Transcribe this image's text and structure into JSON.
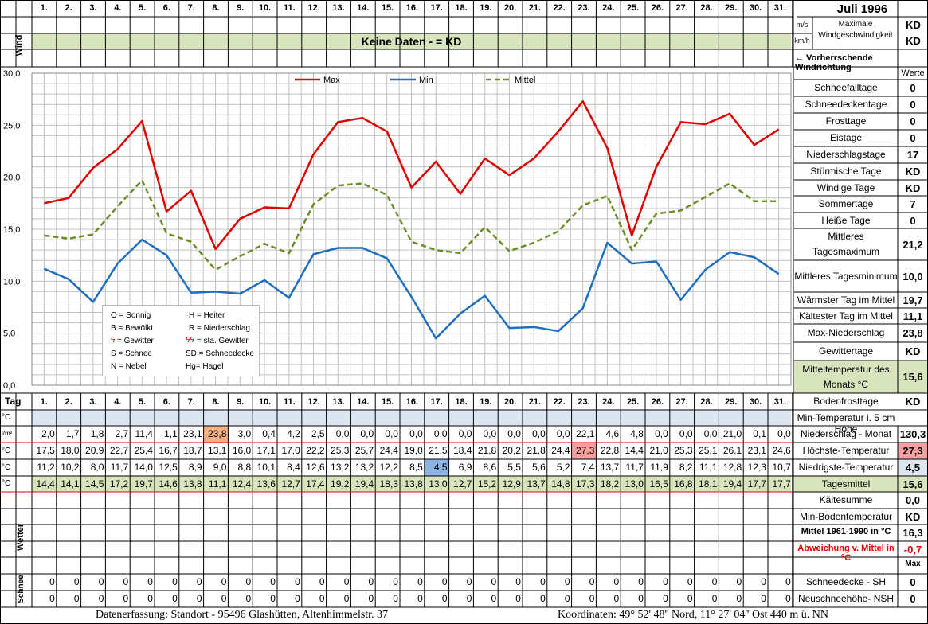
{
  "header": {
    "title": "Juli 1996",
    "days": [
      "1.",
      "2.",
      "3.",
      "4.",
      "5.",
      "6.",
      "7.",
      "8.",
      "9.",
      "10.",
      "11.",
      "12.",
      "13.",
      "14.",
      "15.",
      "16.",
      "17.",
      "18.",
      "19.",
      "20.",
      "21.",
      "22.",
      "23.",
      "24.",
      "25.",
      "26.",
      "27.",
      "28.",
      "29.",
      "30.",
      "31."
    ],
    "wind_label": "Wind",
    "no_data_banner": "Keine Daten -  = KD",
    "unit_ms": "m/s",
    "unit_kmh": "km/h",
    "max_wind_label": "Maximale Windgeschwindigkeit",
    "max_wind_val_1": "KD",
    "max_wind_val_2": "KD",
    "prevailing_wind": "← Vorherrschende Windrichtung"
  },
  "legend_box": {
    "items": [
      "O = Sonnig",
      "H = Heiter",
      "B = Bewölkt",
      "R = Niederschlag",
      "= Gewitter",
      "= sta. Gewitter",
      "S = Schnee",
      "SD = Schneedecke",
      "N = Nebel",
      "Hg= Hagel"
    ]
  },
  "stats": {
    "header": "Werte",
    "rows": [
      {
        "label": "Schneefalltage",
        "value": "0"
      },
      {
        "label": "Schneedeckentage",
        "value": "0"
      },
      {
        "label": "Frosttage",
        "value": "0"
      },
      {
        "label": "Eistage",
        "value": "0"
      },
      {
        "label": "Niederschlagstage",
        "value": "17"
      },
      {
        "label": "Stürmische Tage",
        "value": "KD"
      },
      {
        "label": "Windige Tage",
        "value": "KD"
      },
      {
        "label": "Sommertage",
        "value": "7"
      },
      {
        "label": "Heiße Tage",
        "value": "0"
      },
      {
        "label": "Mittleres Tagesmaximum",
        "value": "21,2"
      },
      {
        "label": "Mittleres Tagesminimum",
        "value": "10,0"
      },
      {
        "label": "Wärmster Tag im Mittel",
        "value": "19,7"
      },
      {
        "label": "Kältester Tag im Mittel",
        "value": "11,1"
      },
      {
        "label": "Max-Niederschlag",
        "value": "23,8"
      },
      {
        "label": "Gewittertage",
        "value": "KD"
      },
      {
        "label": "Mitteltemperatur des Monats °C",
        "value": "15,6"
      },
      {
        "label": "Bodenfrosttage",
        "value": "KD"
      }
    ]
  },
  "table": {
    "tag_label": "Tag",
    "unit_c": "°C",
    "unit_lm2": "l/m²",
    "rows": {
      "niederschlag": [
        "2,0",
        "1,7",
        "1,8",
        "2,7",
        "11,4",
        "1,1",
        "23,1",
        "23,8",
        "3,0",
        "0,4",
        "4,2",
        "2,5",
        "0,0",
        "0,0",
        "0,0",
        "0,0",
        "0,0",
        "0,0",
        "0,0",
        "0,0",
        "0,0",
        "0,0",
        "22,1",
        "4,6",
        "4,8",
        "0,0",
        "0,0",
        "0,0",
        "21,0",
        "0,1",
        "0,0"
      ],
      "max": [
        "17,5",
        "18,0",
        "20,9",
        "22,7",
        "25,4",
        "16,7",
        "18,7",
        "13,1",
        "16,0",
        "17,1",
        "17,0",
        "22,2",
        "25,3",
        "25,7",
        "24,4",
        "19,0",
        "21,5",
        "18,4",
        "21,8",
        "20,2",
        "21,8",
        "24,4",
        "27,3",
        "22,8",
        "14,4",
        "21,0",
        "25,3",
        "25,1",
        "26,1",
        "23,1",
        "24,6"
      ],
      "min": [
        "11,2",
        "10,2",
        "8,0",
        "11,7",
        "14,0",
        "12,5",
        "8,9",
        "9,0",
        "8,8",
        "10,1",
        "8,4",
        "12,6",
        "13,2",
        "13,2",
        "12,2",
        "8,5",
        "4,5",
        "6,9",
        "8,6",
        "5,5",
        "5,6",
        "5,2",
        "7,4",
        "13,7",
        "11,7",
        "11,9",
        "8,2",
        "11,1",
        "12,8",
        "12,3",
        "10,7"
      ],
      "mittel": [
        "14,4",
        "14,1",
        "14,5",
        "17,2",
        "19,7",
        "14,6",
        "13,8",
        "11,1",
        "12,4",
        "13,6",
        "12,7",
        "17,4",
        "19,2",
        "19,4",
        "18,3",
        "13,8",
        "13,0",
        "12,7",
        "15,2",
        "12,9",
        "13,7",
        "14,8",
        "17,3",
        "18,2",
        "13,0",
        "16,5",
        "16,8",
        "18,1",
        "19,4",
        "17,7",
        "17,7"
      ],
      "schnee_sh": [
        "0",
        "0",
        "0",
        "0",
        "0",
        "0",
        "0",
        "0",
        "0",
        "0",
        "0",
        "0",
        "0",
        "0",
        "0",
        "0",
        "0",
        "0",
        "0",
        "0",
        "0",
        "0",
        "0",
        "0",
        "0",
        "0",
        "0",
        "0",
        "0",
        "0",
        "0"
      ],
      "schnee_nsh": [
        "0",
        "0",
        "0",
        "0",
        "0",
        "0",
        "0",
        "0",
        "0",
        "0",
        "0",
        "0",
        "0",
        "0",
        "0",
        "0",
        "0",
        "0",
        "0",
        "0",
        "0",
        "0",
        "0",
        "0",
        "0",
        "0",
        "0",
        "0",
        "0",
        "0",
        "0"
      ]
    },
    "right": [
      {
        "label": "Min-Temperatur i. 5 cm Höhe",
        "value": ""
      },
      {
        "label": "Niederschlag - Monat",
        "value": "130,3"
      },
      {
        "label": "Höchste-Temperatur",
        "value": "27,3"
      },
      {
        "label": "Niedrigste-Temperatur",
        "value": "4,5"
      },
      {
        "label": "Tagesmittel",
        "value": "15,6"
      },
      {
        "label": "Kältesumme",
        "value": "0,0"
      },
      {
        "label": "Min-Bodentemperatur",
        "value": "KD"
      },
      {
        "label": "Mittel 1961-1990 in °C",
        "value": "16,3"
      },
      {
        "label": "Abweichung v. Mittel in °C",
        "value": "-0,7"
      },
      {
        "label": "",
        "value": "Max"
      },
      {
        "label": "Schneedecke -   SH",
        "value": "0"
      },
      {
        "label": "Neuschneehöhe- NSH",
        "value": "0"
      }
    ],
    "wetter_label": "Wetter",
    "schnee_label": "Schnee"
  },
  "footer": {
    "left": "Datenerfassung:  Standort -  95496  Glashütten, Altenhimmelstr. 37",
    "right": "Koordinaten:  49° 52' 48'' Nord,  11° 27' 04'' Ost   440 m ü. NN"
  },
  "colors": {
    "max": "#e00000",
    "min": "#1f6fc0",
    "mittel": "#6b8e23",
    "banner": "#d8e4bc",
    "blue_row": "#dce6f1",
    "highlight_orange": "#f4b183",
    "highlight_red": "#f8a0a0",
    "highlight_blue": "#8db3e2"
  },
  "chart_data": {
    "type": "line",
    "x": [
      "1.",
      "2.",
      "3.",
      "4.",
      "5.",
      "6.",
      "7.",
      "8.",
      "9.",
      "10.",
      "11.",
      "12.",
      "13.",
      "14.",
      "15.",
      "16.",
      "17.",
      "18.",
      "19.",
      "20.",
      "21.",
      "22.",
      "23.",
      "24.",
      "25.",
      "26.",
      "27.",
      "28.",
      "29.",
      "30.",
      "31."
    ],
    "series": [
      {
        "name": "Max",
        "values": [
          17.5,
          18.0,
          20.9,
          22.7,
          25.4,
          16.7,
          18.7,
          13.1,
          16.0,
          17.1,
          17.0,
          22.2,
          25.3,
          25.7,
          24.4,
          19.0,
          21.5,
          18.4,
          21.8,
          20.2,
          21.8,
          24.4,
          27.3,
          22.8,
          14.4,
          21.0,
          25.3,
          25.1,
          26.1,
          23.1,
          24.6
        ]
      },
      {
        "name": "Min",
        "values": [
          11.2,
          10.2,
          8.0,
          11.7,
          14.0,
          12.5,
          8.9,
          9.0,
          8.8,
          10.1,
          8.4,
          12.6,
          13.2,
          13.2,
          12.2,
          8.5,
          4.5,
          6.9,
          8.6,
          5.5,
          5.6,
          5.2,
          7.4,
          13.7,
          11.7,
          11.9,
          8.2,
          11.1,
          12.8,
          12.3,
          10.7
        ]
      },
      {
        "name": "Mittel",
        "values": [
          14.4,
          14.1,
          14.5,
          17.2,
          19.7,
          14.6,
          13.8,
          11.1,
          12.4,
          13.6,
          12.7,
          17.4,
          19.2,
          19.4,
          18.3,
          13.8,
          13.0,
          12.7,
          15.2,
          12.9,
          13.7,
          14.8,
          17.3,
          18.2,
          13.0,
          16.5,
          16.8,
          18.1,
          19.4,
          17.7,
          17.7
        ]
      }
    ],
    "ylim": [
      0,
      30
    ],
    "yticks": [
      "0,0",
      "5,0",
      "10,0",
      "15,0",
      "20,0",
      "25,0",
      "30,0"
    ],
    "grid": true,
    "legend": "top"
  }
}
